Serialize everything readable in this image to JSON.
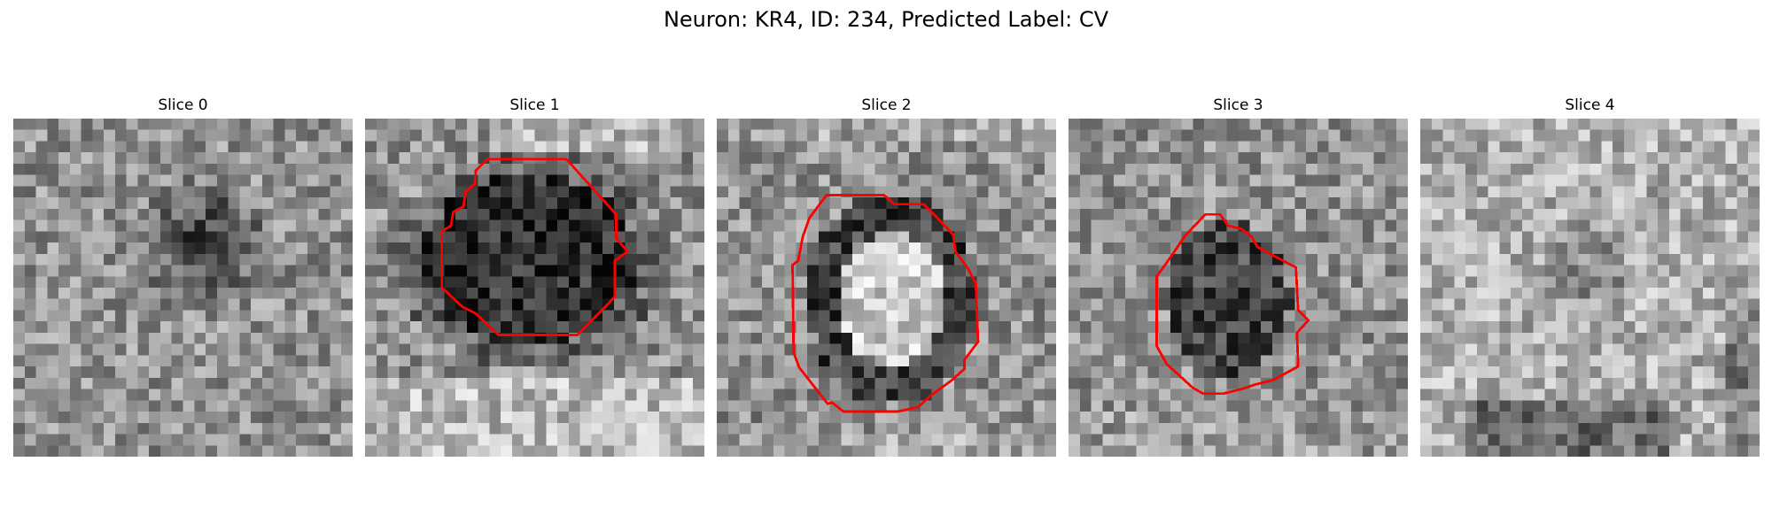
{
  "figure": {
    "title": "Neuron: KR4, ID: 234, Predicted Label: CV"
  },
  "colors": {
    "contour": "#ff0000",
    "colormap": "gray"
  },
  "panels": [
    {
      "title": "Slice 0",
      "has_contour": false,
      "seed": 11,
      "blob": "dark-small"
    },
    {
      "title": "Slice 1",
      "has_contour": true,
      "seed": 23,
      "blob": "dark-large"
    },
    {
      "title": "Slice 2",
      "has_contour": true,
      "seed": 37,
      "blob": "ring"
    },
    {
      "title": "Slice 3",
      "has_contour": true,
      "seed": 53,
      "blob": "dark-medium"
    },
    {
      "title": "Slice 4",
      "has_contour": false,
      "seed": 71,
      "blob": "faint"
    }
  ]
}
